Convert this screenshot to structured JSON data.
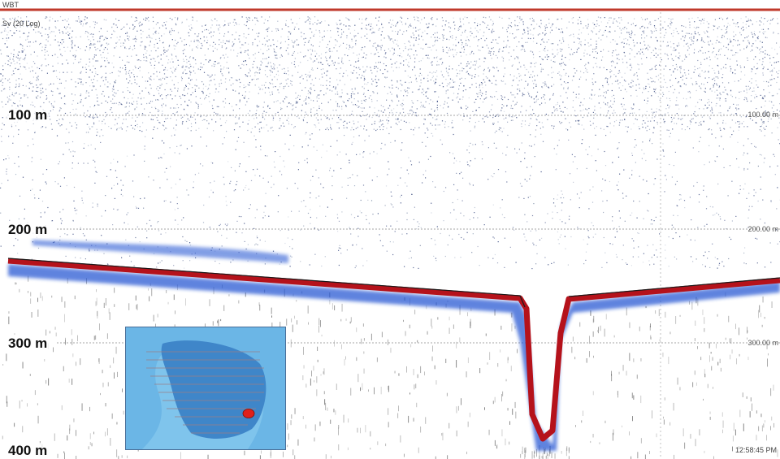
{
  "header": {
    "channel": "WBT",
    "variable": "Sv (20 Log)"
  },
  "depth_axis": {
    "major_labels": [
      "100 m",
      "200 m",
      "300 m",
      "400 m"
    ],
    "minor_labels": [
      "100.00 m",
      "200.00 m",
      "300.00 m"
    ]
  },
  "timestamp": "12:58:45 PM",
  "colors": {
    "bottom_line": "#b5121b",
    "surface_line": "#c0392b",
    "scatter_dark": "#2c3e78",
    "scatter_blue": "#1f4fd1",
    "map_water_light": "#7fc4ec",
    "map_water_deep": "#3f86c9",
    "vessel_marker": "#e0201a"
  },
  "inset_map": {
    "icon": "vessel-position-icon"
  }
}
